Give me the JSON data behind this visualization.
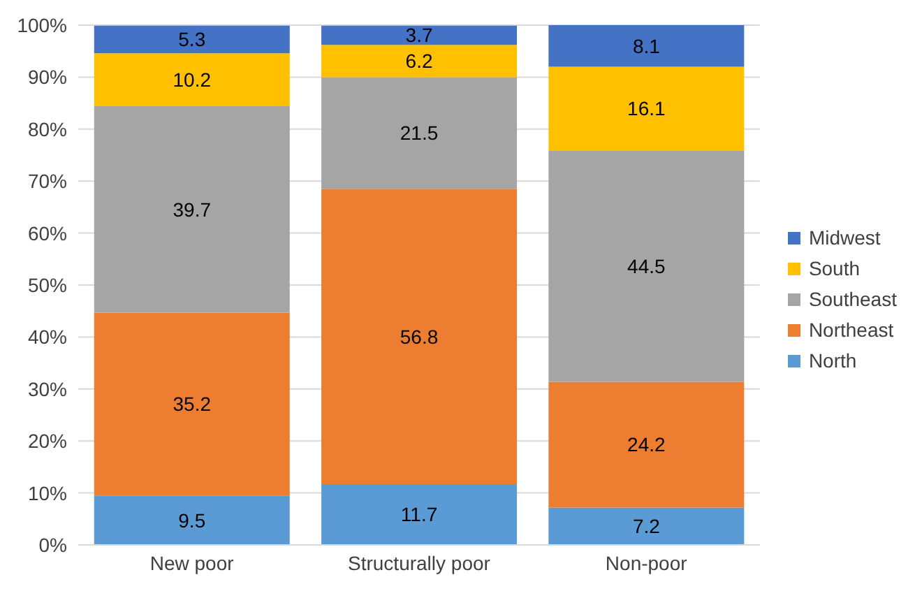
{
  "chart_data": {
    "type": "bar",
    "stacked": true,
    "categories": [
      "New poor",
      "Structurally poor",
      "Non-poor"
    ],
    "series": [
      {
        "name": "North",
        "color": "#5b9bd5",
        "values": [
          9.5,
          11.7,
          7.2
        ]
      },
      {
        "name": "Northeast",
        "color": "#ed7d31",
        "values": [
          35.2,
          56.8,
          24.2
        ]
      },
      {
        "name": "Southeast",
        "color": "#a5a5a5",
        "values": [
          39.7,
          21.5,
          44.5
        ]
      },
      {
        "name": "South",
        "color": "#ffc000",
        "values": [
          10.2,
          6.2,
          16.1
        ]
      },
      {
        "name": "Midwest",
        "color": "#4472c4",
        "values": [
          5.3,
          3.7,
          8.1
        ]
      }
    ],
    "ylim": [
      0,
      100
    ],
    "yticks": [
      {
        "value": 0,
        "label": "0%"
      },
      {
        "value": 10,
        "label": "10%"
      },
      {
        "value": 20,
        "label": "20%"
      },
      {
        "value": 30,
        "label": "30%"
      },
      {
        "value": 40,
        "label": "40%"
      },
      {
        "value": 50,
        "label": "50%"
      },
      {
        "value": 60,
        "label": "60%"
      },
      {
        "value": 70,
        "label": "70%"
      },
      {
        "value": 80,
        "label": "80%"
      },
      {
        "value": 90,
        "label": "90%"
      },
      {
        "value": 100,
        "label": "100%"
      }
    ],
    "grid": "y",
    "legend": "right",
    "data_labels": true
  }
}
